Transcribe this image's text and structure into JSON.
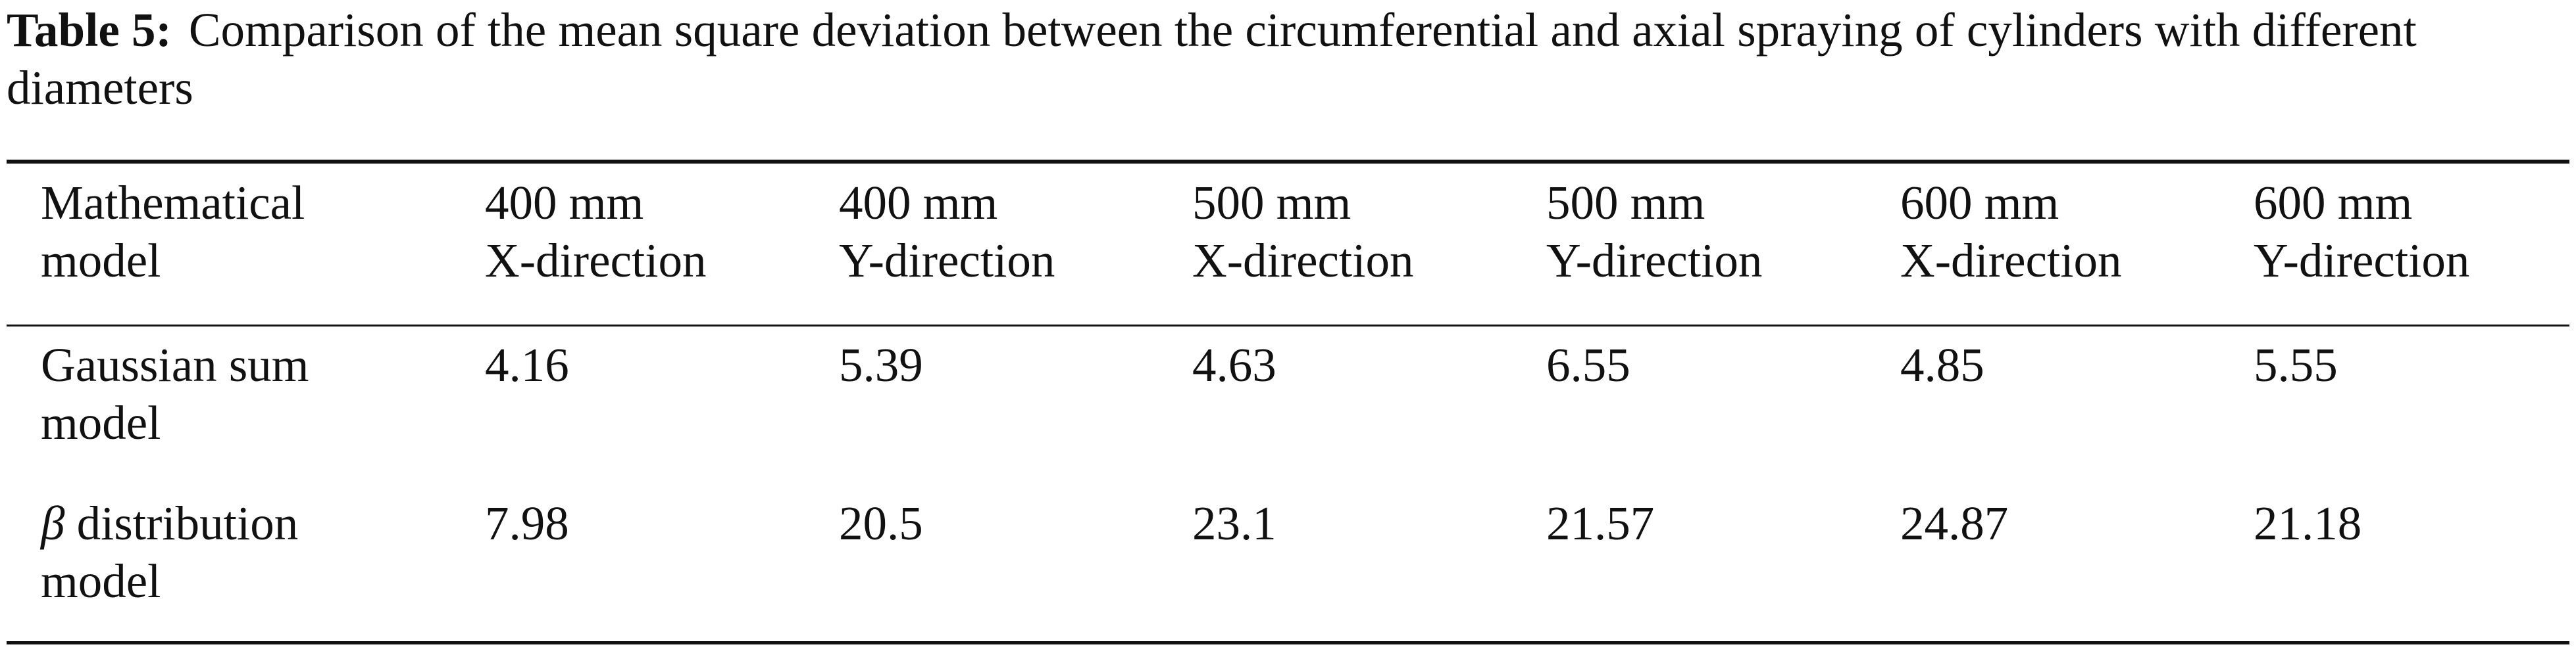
{
  "caption": {
    "label": "Table 5:",
    "text": "Comparison of the mean square deviation between the circumferential and axial spraying of cylinders with different diameters"
  },
  "table": {
    "headers": [
      [
        "Mathematical",
        "model"
      ],
      [
        "400 mm",
        "X-direction"
      ],
      [
        "400 mm",
        "Y-direction"
      ],
      [
        "500 mm",
        "X-direction"
      ],
      [
        "500 mm",
        "Y-direction"
      ],
      [
        "600 mm",
        "X-direction"
      ],
      [
        "600 mm",
        "Y-direction"
      ]
    ],
    "rows": [
      {
        "model_line1": "Gaussian sum",
        "model_line2": "model",
        "values": [
          "4.16",
          "5.39",
          "4.63",
          "6.55",
          "4.85",
          "5.55"
        ]
      },
      {
        "model_symbol": "β",
        "model_line1_rest": " distribution",
        "model_line2": "model",
        "values": [
          "7.98",
          "20.5",
          "23.1",
          "21.57",
          "24.87",
          "21.18"
        ]
      }
    ]
  }
}
